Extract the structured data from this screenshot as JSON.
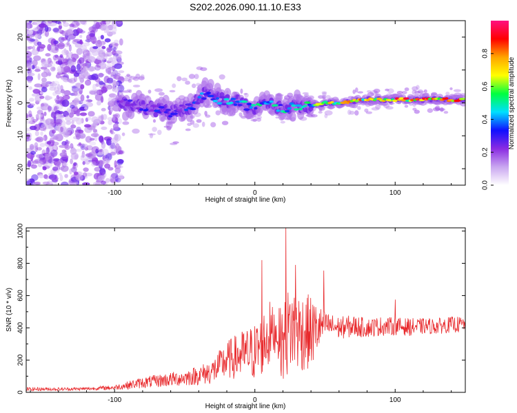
{
  "figure": {
    "title": "S202.2026.090.11.10.E33"
  },
  "chart_data": [
    {
      "id": "spectrogram",
      "type": "heatmap",
      "xlabel": "Height of straight line (km)",
      "ylabel": "Frequency (Hz)",
      "xlim": [
        -163,
        150
      ],
      "ylim": [
        -25,
        25
      ],
      "xticks": [
        -100,
        0,
        100
      ],
      "yticks": [
        -20,
        -10,
        0,
        10,
        20
      ],
      "colorbar": {
        "label": "Normalized spectral amplitude",
        "range": [
          0,
          1
        ],
        "ticks": [
          "0.0",
          "0.2",
          "0.4",
          "0.6",
          "0.8"
        ],
        "tick_values": [
          0.0,
          0.2,
          0.4,
          0.6,
          0.8
        ],
        "colors": [
          "#ffffff",
          "#c9a6f0",
          "#8a2be2",
          "#1010ff",
          "#00e0ff",
          "#00ff40",
          "#ffff00",
          "#ffa500",
          "#ff0000",
          "#ff1080"
        ]
      },
      "ridge": {
        "description_points_x": [
          -95,
          -80,
          -60,
          -45,
          -35,
          -25,
          -10,
          0,
          10,
          20,
          30,
          40,
          50,
          60,
          70,
          80,
          90,
          100,
          110,
          120,
          130,
          140,
          148
        ],
        "frequency_hz": [
          0,
          -1,
          -3,
          -1,
          3,
          1,
          0,
          -2,
          0,
          -2,
          -1,
          -1,
          0,
          0,
          0.5,
          1,
          1,
          1,
          1,
          1,
          1,
          1,
          1
        ],
        "amplitude": [
          0.25,
          0.3,
          0.35,
          0.35,
          0.4,
          0.45,
          0.5,
          0.5,
          0.5,
          0.5,
          0.55,
          0.6,
          0.75,
          0.8,
          0.8,
          0.8,
          0.82,
          0.85,
          0.88,
          0.9,
          0.9,
          0.92,
          0.92
        ]
      }
    },
    {
      "id": "snr",
      "type": "line",
      "xlabel": "Height of straight line (km)",
      "ylabel": "SNR (10 * v/v)",
      "xlim": [
        -163,
        150
      ],
      "ylim": [
        0,
        1020
      ],
      "xticks": [
        -100,
        0,
        100
      ],
      "yticks": [
        0,
        200,
        400,
        600,
        800,
        1000
      ],
      "series": [
        {
          "name": "SNR",
          "color": "#e8282b",
          "envelope_x": [
            -163,
            -140,
            -120,
            -100,
            -90,
            -80,
            -70,
            -60,
            -50,
            -40,
            -30,
            -20,
            -10,
            0,
            5,
            10,
            15,
            20,
            25,
            30,
            40,
            50,
            60,
            70,
            80,
            90,
            100,
            110,
            120,
            130,
            140,
            150
          ],
          "envelope_mean": [
            20,
            20,
            22,
            30,
            45,
            60,
            70,
            80,
            90,
            105,
            130,
            200,
            230,
            250,
            300,
            360,
            380,
            300,
            400,
            380,
            370,
            420,
            400,
            410,
            400,
            410,
            410,
            405,
            410,
            410,
            420,
            420
          ],
          "envelope_spread": [
            12,
            10,
            10,
            15,
            25,
            35,
            40,
            45,
            50,
            60,
            80,
            120,
            150,
            180,
            200,
            220,
            120,
            250,
            280,
            260,
            230,
            80,
            70,
            70,
            60,
            60,
            55,
            55,
            50,
            50,
            50,
            50
          ],
          "peaks": [
            {
              "x": 5,
              "y": 820
            },
            {
              "x": 22,
              "y": 1020
            },
            {
              "x": 29,
              "y": 790
            },
            {
              "x": 49,
              "y": 755
            },
            {
              "x": 100,
              "y": 575
            }
          ]
        }
      ]
    }
  ]
}
